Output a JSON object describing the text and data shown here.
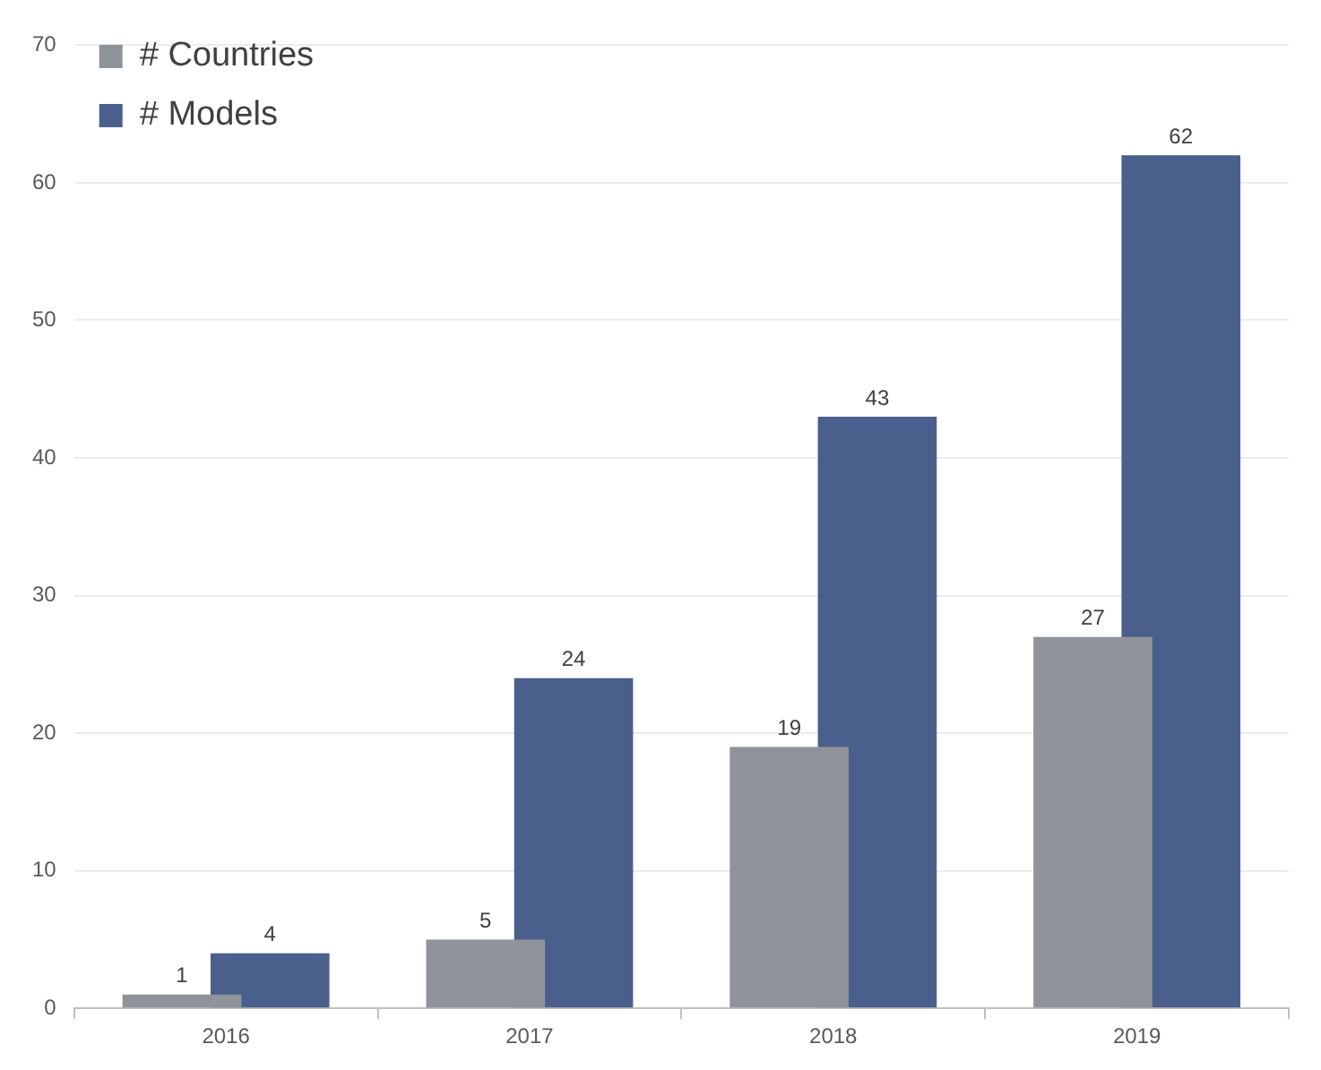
{
  "chart_data": {
    "type": "bar",
    "categories": [
      "2016",
      "2017",
      "2018",
      "2019"
    ],
    "series": [
      {
        "name": "# Countries",
        "color": "#8e9499",
        "values": [
          1,
          5,
          19,
          27
        ]
      },
      {
        "name": "# Models",
        "color": "#4b5f8c",
        "values": [
          4,
          24,
          43,
          62
        ]
      }
    ],
    "ylim": [
      0,
      70
    ],
    "yticks": [
      0,
      10,
      20,
      30,
      40,
      50,
      60,
      70
    ],
    "grid": "y",
    "legend": "top left",
    "data_labels": true
  }
}
